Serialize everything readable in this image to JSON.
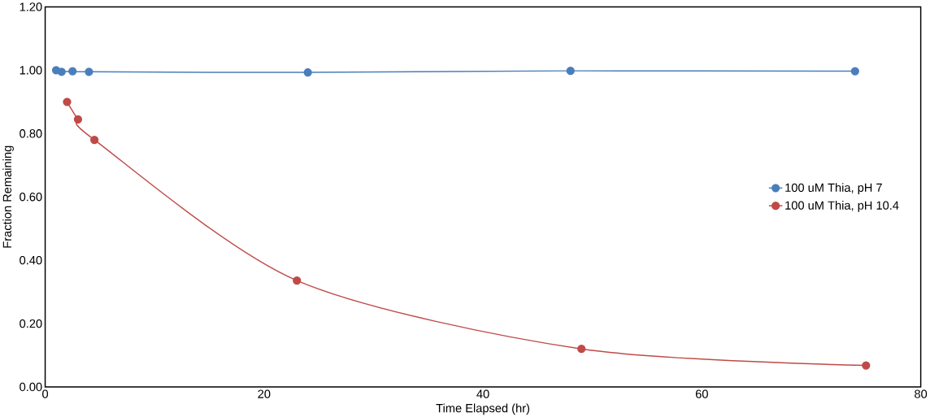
{
  "chart_data": {
    "type": "line",
    "xlabel": "Time Elapsed (hr)",
    "ylabel": "Fraction Remaining",
    "xlim": [
      0,
      80
    ],
    "xticks": [
      0,
      20,
      40,
      60,
      80
    ],
    "ylim": [
      0,
      1.2
    ],
    "yticks": [
      {
        "value": 0,
        "label": "0.00"
      },
      {
        "value": 0.2,
        "label": "0.20"
      },
      {
        "value": 0.4,
        "label": "0.40"
      },
      {
        "value": 0.6,
        "label": "0.60"
      },
      {
        "value": 0.8,
        "label": "0.80"
      },
      {
        "value": 1.0,
        "label": "1.00"
      },
      {
        "value": 1.2,
        "label": "1.20"
      }
    ],
    "grid": false,
    "legend": "right",
    "marker": "circle",
    "line_style": "solid",
    "series": [
      {
        "name": "100 uM Thia, pH 7",
        "color": "#4a7ebb",
        "x": [
          1,
          1.5,
          2.5,
          4,
          24,
          48,
          74
        ],
        "values": [
          1.0,
          0.995,
          0.997,
          0.995,
          0.993,
          0.998,
          0.997
        ]
      },
      {
        "name": "100 uM Thia, pH 10.4",
        "color": "#be4b48",
        "x": [
          2,
          3,
          4.5,
          23,
          49,
          75
        ],
        "values": [
          0.9,
          0.845,
          0.78,
          0.336,
          0.12,
          0.068
        ]
      }
    ]
  }
}
